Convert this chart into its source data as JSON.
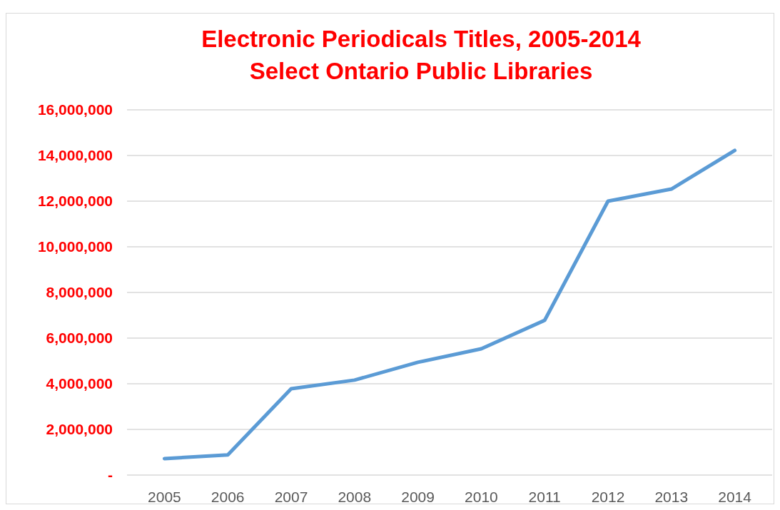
{
  "chart_data": {
    "type": "line",
    "title": "Electronic Periodicals Titles, 2005-2014",
    "subtitle": "Select Ontario Public Libraries",
    "categories": [
      "2005",
      "2006",
      "2007",
      "2008",
      "2009",
      "2010",
      "2011",
      "2012",
      "2013",
      "2014"
    ],
    "series": [
      {
        "color": "#5b9bd5",
        "values": [
          720000,
          880000,
          3780000,
          4160000,
          4940000,
          5530000,
          6780000,
          12000000,
          12530000,
          14220000
        ]
      }
    ],
    "ylim": [
      0,
      16000000
    ],
    "yticks": [
      {
        "value": 0,
        "label": "-"
      },
      {
        "value": 2000000,
        "label": "2,000,000"
      },
      {
        "value": 4000000,
        "label": "4,000,000"
      },
      {
        "value": 6000000,
        "label": "6,000,000"
      },
      {
        "value": 8000000,
        "label": "8,000,000"
      },
      {
        "value": 10000000,
        "label": "10,000,000"
      },
      {
        "value": 12000000,
        "label": "12,000,000"
      },
      {
        "value": 14000000,
        "label": "14,000,000"
      },
      {
        "value": 16000000,
        "label": "16,000,000"
      }
    ],
    "grid": "y",
    "marker": "none",
    "line_style": "solid"
  }
}
